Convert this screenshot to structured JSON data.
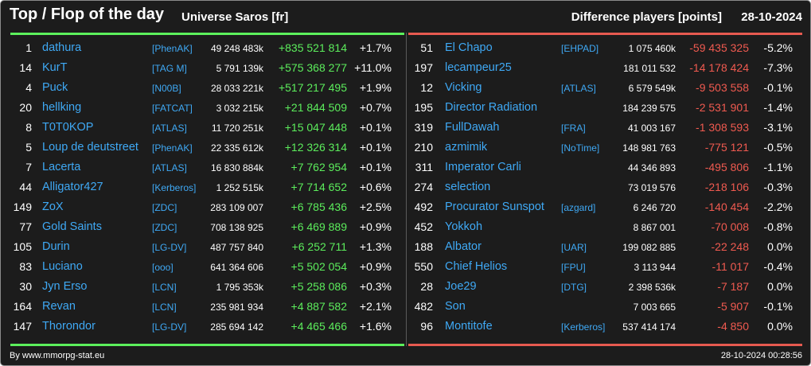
{
  "header": {
    "title": "Top / Flop of the day",
    "universe": "Universe Saros [fr]",
    "metric": "Difference players [points]",
    "date": "28-10-2024"
  },
  "colors": {
    "background": "#1c1c1c",
    "link": "#3fa9f5",
    "gain": "#5ced5c",
    "loss": "#f05a50"
  },
  "top": [
    {
      "rank": "1",
      "name": "dathura",
      "alliance": "[PhenAK]",
      "points": "49 248 483k",
      "diff": "+835 521 814",
      "pct": "+1.7%"
    },
    {
      "rank": "14",
      "name": "KurT",
      "alliance": "[TAG M]",
      "points": "5 791 139k",
      "diff": "+575 368 277",
      "pct": "+11.0%"
    },
    {
      "rank": "4",
      "name": "Puck",
      "alliance": "[N00B]",
      "points": "28 033 221k",
      "diff": "+517 217 495",
      "pct": "+1.9%"
    },
    {
      "rank": "20",
      "name": "hellking",
      "alliance": "[FATCAT]",
      "points": "3 032 215k",
      "diff": "+21 844 509",
      "pct": "+0.7%"
    },
    {
      "rank": "8",
      "name": "T0T0KOP",
      "alliance": "[ATLAS]",
      "points": "11 720 251k",
      "diff": "+15 047 448",
      "pct": "+0.1%"
    },
    {
      "rank": "5",
      "name": "Loup de deutstreet",
      "alliance": "[PhenAK]",
      "points": "22 335 612k",
      "diff": "+12 326 314",
      "pct": "+0.1%"
    },
    {
      "rank": "7",
      "name": "Lacerta",
      "alliance": "[ATLAS]",
      "points": "16 830 884k",
      "diff": "+7 762 954",
      "pct": "+0.1%"
    },
    {
      "rank": "44",
      "name": "Alligator427",
      "alliance": "[Kerberos]",
      "points": "1 252 515k",
      "diff": "+7 714 652",
      "pct": "+0.6%"
    },
    {
      "rank": "149",
      "name": "ZoX",
      "alliance": "[ZDC]",
      "points": "283 109 007",
      "diff": "+6 785 436",
      "pct": "+2.5%"
    },
    {
      "rank": "77",
      "name": "Gold Saints",
      "alliance": "[ZDC]",
      "points": "708 138 925",
      "diff": "+6 469 889",
      "pct": "+0.9%"
    },
    {
      "rank": "105",
      "name": "Durin",
      "alliance": "[LG-DV]",
      "points": "487 757 840",
      "diff": "+6 252 711",
      "pct": "+1.3%"
    },
    {
      "rank": "83",
      "name": "Luciano",
      "alliance": "[ooo]",
      "points": "641 364 606",
      "diff": "+5 502 054",
      "pct": "+0.9%"
    },
    {
      "rank": "30",
      "name": "Jyn Erso",
      "alliance": "[LCN]",
      "points": "1 795 353k",
      "diff": "+5 258 086",
      "pct": "+0.3%"
    },
    {
      "rank": "164",
      "name": "Revan",
      "alliance": "[LCN]",
      "points": "235 981 934",
      "diff": "+4 887 582",
      "pct": "+2.1%"
    },
    {
      "rank": "147",
      "name": "Thorondor",
      "alliance": "[LG-DV]",
      "points": "285 694 142",
      "diff": "+4 465 466",
      "pct": "+1.6%"
    }
  ],
  "flop": [
    {
      "rank": "51",
      "name": "El Chapo",
      "alliance": "[EHPAD]",
      "points": "1 075 460k",
      "diff": "-59 435 325",
      "pct": "-5.2%"
    },
    {
      "rank": "197",
      "name": "lecampeur25",
      "alliance": "",
      "points": "181 011 532",
      "diff": "-14 178 424",
      "pct": "-7.3%"
    },
    {
      "rank": "12",
      "name": "Vicking",
      "alliance": "[ATLAS]",
      "points": "6 579 549k",
      "diff": "-9 503 558",
      "pct": "-0.1%"
    },
    {
      "rank": "195",
      "name": "Director Radiation",
      "alliance": "",
      "points": "184 239 575",
      "diff": "-2 531 901",
      "pct": "-1.4%"
    },
    {
      "rank": "319",
      "name": "FullDawah",
      "alliance": "[FRA]",
      "points": "41 003 167",
      "diff": "-1 308 593",
      "pct": "-3.1%"
    },
    {
      "rank": "210",
      "name": "azmimik",
      "alliance": "[NoTime]",
      "points": "148 981 763",
      "diff": "-775 121",
      "pct": "-0.5%"
    },
    {
      "rank": "311",
      "name": "Imperator Carli",
      "alliance": "",
      "points": "44 346 893",
      "diff": "-495 806",
      "pct": "-1.1%"
    },
    {
      "rank": "274",
      "name": "selection",
      "alliance": "",
      "points": "73 019 576",
      "diff": "-218 106",
      "pct": "-0.3%"
    },
    {
      "rank": "492",
      "name": "Procurator Sunspot",
      "alliance": "[azgard]",
      "points": "6 246 720",
      "diff": "-140 454",
      "pct": "-2.2%"
    },
    {
      "rank": "452",
      "name": "Yokkoh",
      "alliance": "",
      "points": "8 867 001",
      "diff": "-70 008",
      "pct": "-0.8%"
    },
    {
      "rank": "188",
      "name": "Albator",
      "alliance": "[UAR]",
      "points": "199 082 885",
      "diff": "-22 248",
      "pct": "0.0%"
    },
    {
      "rank": "550",
      "name": "Chief Helios",
      "alliance": "[FPU]",
      "points": "3 113 944",
      "diff": "-11 017",
      "pct": "-0.4%"
    },
    {
      "rank": "28",
      "name": "Joe29",
      "alliance": "[DTG]",
      "points": "2 398 536k",
      "diff": "-7 187",
      "pct": "0.0%"
    },
    {
      "rank": "482",
      "name": "Son",
      "alliance": "",
      "points": "7 003 665",
      "diff": "-5 907",
      "pct": "-0.1%"
    },
    {
      "rank": "96",
      "name": "Montitofe",
      "alliance": "[Kerberos]",
      "points": "537 414 174",
      "diff": "-4 850",
      "pct": "0.0%"
    }
  ],
  "footer": {
    "credit": "By www.mmorpg-stat.eu",
    "timestamp": "28-10-2024 00:28:56"
  }
}
